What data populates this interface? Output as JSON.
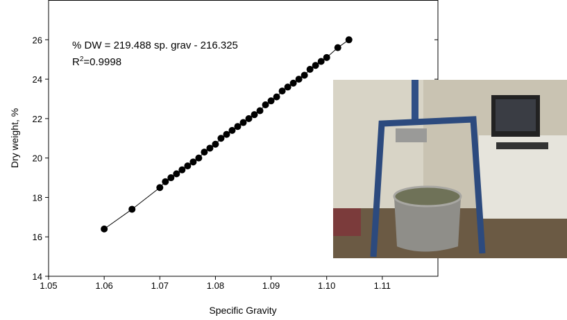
{
  "chart_data": {
    "type": "scatter",
    "x_label": "Specific Gravity",
    "y_label": "Dry weight, %",
    "annotation_equation": "% DW = 219.488 sp. grav - 216.325",
    "annotation_r2_base": "R",
    "annotation_r2_sup": "2",
    "annotation_r2_tail": "=0.9998",
    "color": "#000000",
    "fit_line": true,
    "x": [
      1.06,
      1.065,
      1.07,
      1.071,
      1.072,
      1.073,
      1.074,
      1.075,
      1.076,
      1.077,
      1.078,
      1.079,
      1.08,
      1.081,
      1.082,
      1.083,
      1.084,
      1.085,
      1.086,
      1.087,
      1.088,
      1.089,
      1.09,
      1.091,
      1.092,
      1.093,
      1.094,
      1.095,
      1.096,
      1.097,
      1.098,
      1.099,
      1.1,
      1.102,
      1.104
    ],
    "values": [
      16.4,
      17.4,
      18.5,
      18.8,
      19.0,
      19.2,
      19.4,
      19.6,
      19.8,
      20.0,
      20.3,
      20.5,
      20.7,
      21.0,
      21.2,
      21.4,
      21.6,
      21.8,
      22.0,
      22.2,
      22.4,
      22.7,
      22.9,
      23.1,
      23.4,
      23.6,
      23.8,
      24.0,
      24.2,
      24.5,
      24.7,
      24.9,
      25.1,
      25.6,
      26.0
    ],
    "xlim": [
      1.05,
      1.12
    ],
    "xticks": [
      1.05,
      1.06,
      1.07,
      1.08,
      1.09,
      {
        "value": 1.1,
        "label": "1.10"
      },
      1.11
    ],
    "ylim": [
      14,
      28
    ],
    "yticks": [
      14,
      16,
      18,
      20,
      22,
      24,
      26
    ]
  }
}
